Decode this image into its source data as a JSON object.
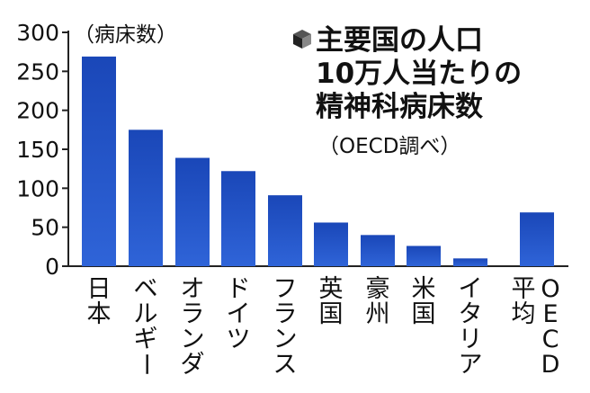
{
  "chart_data": {
    "type": "bar",
    "title_lines": [
      "主要国の人口",
      "10万人当たりの",
      "精神科病床数"
    ],
    "source": "（OECD調べ）",
    "unit_label": "（病床数）",
    "categories": [
      "日本",
      "ベルギー",
      "オランダ",
      "ドイツ",
      "フランス",
      "英国",
      "豪州",
      "米国",
      "イタリア",
      "OECD平均"
    ],
    "category_lines": [
      [
        "日本"
      ],
      [
        "ベルギー"
      ],
      [
        "オランダ"
      ],
      [
        "ドイツ"
      ],
      [
        "フランス"
      ],
      [
        "英国"
      ],
      [
        "豪州"
      ],
      [
        "米国"
      ],
      [
        "イタリア"
      ],
      [
        "平均",
        "OECD"
      ]
    ],
    "values": [
      269,
      175,
      139,
      122,
      91,
      56,
      40,
      26,
      10,
      69
    ],
    "ylim": [
      0,
      300
    ],
    "yticks": [
      0,
      50,
      100,
      150,
      200,
      250,
      300
    ],
    "grid": false,
    "colors": {
      "bar_dark": "#1a47b8",
      "bar_light": "#2f64d8",
      "axis": "#222222",
      "text": "#111111",
      "title_icon": "#333333"
    }
  }
}
